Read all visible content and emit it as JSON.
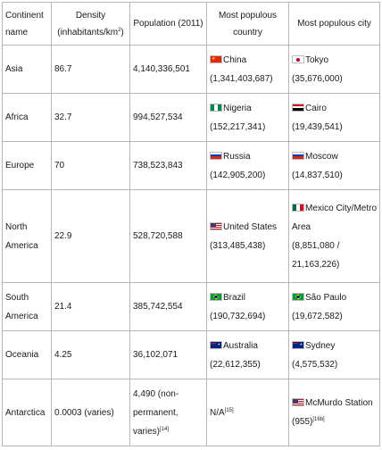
{
  "headers": {
    "continent": "Continent name",
    "density": "Density (inhabitants/km",
    "density_unit_sup": "2",
    "density_close": ")",
    "population": "Population (2011)",
    "country": "Most populous country",
    "city": "Most populous city"
  },
  "rows": [
    {
      "continent": "Asia",
      "density": "86.7",
      "population": "4,140,336,501",
      "country": "China",
      "country_pop": "(1,341,403,687)",
      "city": "Tokyo",
      "city_pop": "(35,676,000)",
      "country_flag": "china-flag",
      "city_flag": "japan-flag"
    },
    {
      "continent": "Africa",
      "density": "32.7",
      "population": "994,527,534",
      "country": "Nigeria",
      "country_pop": "(152,217,341)",
      "city": "Cairo",
      "city_pop": "(19,439,541)",
      "country_flag": "nigeria-flag",
      "city_flag": "egypt-flag"
    },
    {
      "continent": "Europe",
      "density": "70",
      "population": "738,523,843",
      "country": "Russia",
      "country_pop": "(142,905,200)",
      "city": "Moscow",
      "city_pop": "(14,837,510)",
      "country_flag": "russia-flag",
      "city_flag": "russia-flag"
    },
    {
      "continent": "North America",
      "density": "22.9",
      "population": "528,720,588",
      "country": "United States",
      "country_pop": "(313,485,438)",
      "city": "Mexico City/Metro Area",
      "city_pop": "(8,851,080 / 21,163,226)",
      "country_flag": "usa-flag",
      "city_flag": "mexico-flag"
    },
    {
      "continent": "South America",
      "density": "21.4",
      "population": "385,742,554",
      "country": "Brazil",
      "country_pop": "(190,732,694)",
      "city": "São Paulo",
      "city_pop": "(19,672,582)",
      "country_flag": "brazil-flag",
      "city_flag": "brazil-flag"
    },
    {
      "continent": "Oceania",
      "density": "4.25",
      "population": "36,102,071",
      "country": "Australia",
      "country_pop": "(22,612,355)",
      "city": "Sydney",
      "city_pop": "(4,575,532)",
      "country_flag": "australia-flag",
      "city_flag": "australia-flag"
    },
    {
      "continent": "Antarctica",
      "density": "0.0003 (varies)",
      "population": "4,490 (non-permanent, varies)",
      "population_ref": "[14]",
      "country": "N/A",
      "country_ref": "[15]",
      "city": "McMurdo Station (955)",
      "city_ref": "[16b]",
      "city_flag": "usa-flag"
    }
  ]
}
